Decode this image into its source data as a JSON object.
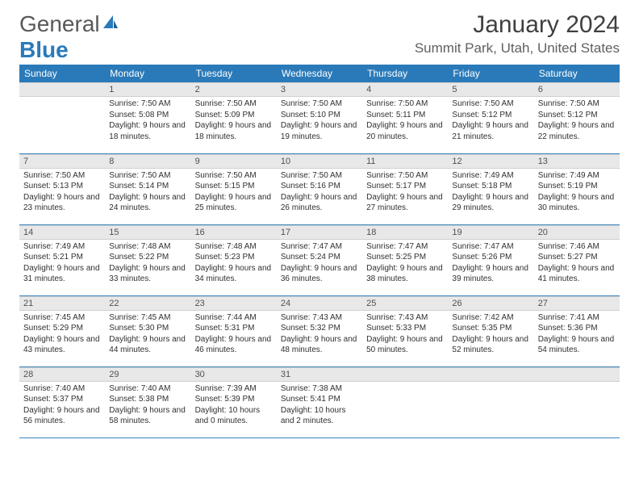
{
  "brand": {
    "part1": "General",
    "part2": "Blue"
  },
  "title": "January 2024",
  "location": "Summit Park, Utah, United States",
  "header_bg": "#2a7ab9",
  "header_fg": "#ffffff",
  "daynum_bg": "#e8e8e8",
  "row_divider": "#3a84bd",
  "weekdays": [
    "Sunday",
    "Monday",
    "Tuesday",
    "Wednesday",
    "Thursday",
    "Friday",
    "Saturday"
  ],
  "weeks": [
    [
      {
        "n": "",
        "sunrise": "",
        "sunset": "",
        "daylight": ""
      },
      {
        "n": "1",
        "sunrise": "7:50 AM",
        "sunset": "5:08 PM",
        "daylight": "9 hours and 18 minutes."
      },
      {
        "n": "2",
        "sunrise": "7:50 AM",
        "sunset": "5:09 PM",
        "daylight": "9 hours and 18 minutes."
      },
      {
        "n": "3",
        "sunrise": "7:50 AM",
        "sunset": "5:10 PM",
        "daylight": "9 hours and 19 minutes."
      },
      {
        "n": "4",
        "sunrise": "7:50 AM",
        "sunset": "5:11 PM",
        "daylight": "9 hours and 20 minutes."
      },
      {
        "n": "5",
        "sunrise": "7:50 AM",
        "sunset": "5:12 PM",
        "daylight": "9 hours and 21 minutes."
      },
      {
        "n": "6",
        "sunrise": "7:50 AM",
        "sunset": "5:12 PM",
        "daylight": "9 hours and 22 minutes."
      }
    ],
    [
      {
        "n": "7",
        "sunrise": "7:50 AM",
        "sunset": "5:13 PM",
        "daylight": "9 hours and 23 minutes."
      },
      {
        "n": "8",
        "sunrise": "7:50 AM",
        "sunset": "5:14 PM",
        "daylight": "9 hours and 24 minutes."
      },
      {
        "n": "9",
        "sunrise": "7:50 AM",
        "sunset": "5:15 PM",
        "daylight": "9 hours and 25 minutes."
      },
      {
        "n": "10",
        "sunrise": "7:50 AM",
        "sunset": "5:16 PM",
        "daylight": "9 hours and 26 minutes."
      },
      {
        "n": "11",
        "sunrise": "7:50 AM",
        "sunset": "5:17 PM",
        "daylight": "9 hours and 27 minutes."
      },
      {
        "n": "12",
        "sunrise": "7:49 AM",
        "sunset": "5:18 PM",
        "daylight": "9 hours and 29 minutes."
      },
      {
        "n": "13",
        "sunrise": "7:49 AM",
        "sunset": "5:19 PM",
        "daylight": "9 hours and 30 minutes."
      }
    ],
    [
      {
        "n": "14",
        "sunrise": "7:49 AM",
        "sunset": "5:21 PM",
        "daylight": "9 hours and 31 minutes."
      },
      {
        "n": "15",
        "sunrise": "7:48 AM",
        "sunset": "5:22 PM",
        "daylight": "9 hours and 33 minutes."
      },
      {
        "n": "16",
        "sunrise": "7:48 AM",
        "sunset": "5:23 PM",
        "daylight": "9 hours and 34 minutes."
      },
      {
        "n": "17",
        "sunrise": "7:47 AM",
        "sunset": "5:24 PM",
        "daylight": "9 hours and 36 minutes."
      },
      {
        "n": "18",
        "sunrise": "7:47 AM",
        "sunset": "5:25 PM",
        "daylight": "9 hours and 38 minutes."
      },
      {
        "n": "19",
        "sunrise": "7:47 AM",
        "sunset": "5:26 PM",
        "daylight": "9 hours and 39 minutes."
      },
      {
        "n": "20",
        "sunrise": "7:46 AM",
        "sunset": "5:27 PM",
        "daylight": "9 hours and 41 minutes."
      }
    ],
    [
      {
        "n": "21",
        "sunrise": "7:45 AM",
        "sunset": "5:29 PM",
        "daylight": "9 hours and 43 minutes."
      },
      {
        "n": "22",
        "sunrise": "7:45 AM",
        "sunset": "5:30 PM",
        "daylight": "9 hours and 44 minutes."
      },
      {
        "n": "23",
        "sunrise": "7:44 AM",
        "sunset": "5:31 PM",
        "daylight": "9 hours and 46 minutes."
      },
      {
        "n": "24",
        "sunrise": "7:43 AM",
        "sunset": "5:32 PM",
        "daylight": "9 hours and 48 minutes."
      },
      {
        "n": "25",
        "sunrise": "7:43 AM",
        "sunset": "5:33 PM",
        "daylight": "9 hours and 50 minutes."
      },
      {
        "n": "26",
        "sunrise": "7:42 AM",
        "sunset": "5:35 PM",
        "daylight": "9 hours and 52 minutes."
      },
      {
        "n": "27",
        "sunrise": "7:41 AM",
        "sunset": "5:36 PM",
        "daylight": "9 hours and 54 minutes."
      }
    ],
    [
      {
        "n": "28",
        "sunrise": "7:40 AM",
        "sunset": "5:37 PM",
        "daylight": "9 hours and 56 minutes."
      },
      {
        "n": "29",
        "sunrise": "7:40 AM",
        "sunset": "5:38 PM",
        "daylight": "9 hours and 58 minutes."
      },
      {
        "n": "30",
        "sunrise": "7:39 AM",
        "sunset": "5:39 PM",
        "daylight": "10 hours and 0 minutes."
      },
      {
        "n": "31",
        "sunrise": "7:38 AM",
        "sunset": "5:41 PM",
        "daylight": "10 hours and 2 minutes."
      },
      {
        "n": "",
        "sunrise": "",
        "sunset": "",
        "daylight": ""
      },
      {
        "n": "",
        "sunrise": "",
        "sunset": "",
        "daylight": ""
      },
      {
        "n": "",
        "sunrise": "",
        "sunset": "",
        "daylight": ""
      }
    ]
  ],
  "labels": {
    "sunrise": "Sunrise:",
    "sunset": "Sunset:",
    "daylight": "Daylight:"
  }
}
